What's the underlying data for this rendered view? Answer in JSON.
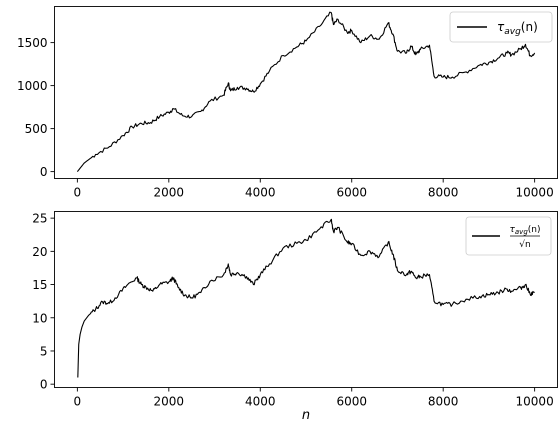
{
  "chart_data": [
    {
      "type": "line",
      "xlim": [
        -500,
        10500
      ],
      "ylim": [
        -80,
        1920
      ],
      "xticks": [
        0,
        2000,
        4000,
        6000,
        8000,
        10000
      ],
      "yticks": [
        0,
        500,
        1000,
        1500
      ],
      "legend_placement": "upper right",
      "series": [
        {
          "name": "τavg(n)",
          "name_main": "τ",
          "name_sub": "avg",
          "name_arg": "(n)",
          "color": "#000000",
          "points": [
            [
              0,
              0
            ],
            [
              150,
              100
            ],
            [
              400,
              200
            ],
            [
              700,
              290
            ],
            [
              1000,
              420
            ],
            [
              1200,
              520
            ],
            [
              1400,
              560
            ],
            [
              1600,
              570
            ],
            [
              1800,
              640
            ],
            [
              2000,
              690
            ],
            [
              2100,
              730
            ],
            [
              2300,
              650
            ],
            [
              2500,
              640
            ],
            [
              2700,
              700
            ],
            [
              2900,
              820
            ],
            [
              3200,
              890
            ],
            [
              3300,
              1030
            ],
            [
              3350,
              940
            ],
            [
              3500,
              980
            ],
            [
              3700,
              970
            ],
            [
              3850,
              930
            ],
            [
              4000,
              1020
            ],
            [
              4200,
              1170
            ],
            [
              4500,
              1350
            ],
            [
              4800,
              1450
            ],
            [
              5000,
              1520
            ],
            [
              5300,
              1690
            ],
            [
              5550,
              1850
            ],
            [
              5600,
              1710
            ],
            [
              5700,
              1770
            ],
            [
              5900,
              1620
            ],
            [
              6000,
              1640
            ],
            [
              6200,
              1500
            ],
            [
              6400,
              1580
            ],
            [
              6600,
              1540
            ],
            [
              6800,
              1730
            ],
            [
              6900,
              1600
            ],
            [
              7000,
              1400
            ],
            [
              7200,
              1380
            ],
            [
              7300,
              1460
            ],
            [
              7400,
              1360
            ],
            [
              7500,
              1420
            ],
            [
              7700,
              1470
            ],
            [
              7800,
              1110
            ],
            [
              8000,
              1100
            ],
            [
              8200,
              1100
            ],
            [
              8500,
              1160
            ],
            [
              8800,
              1240
            ],
            [
              9000,
              1270
            ],
            [
              9200,
              1320
            ],
            [
              9400,
              1380
            ],
            [
              9500,
              1360
            ],
            [
              9700,
              1430
            ],
            [
              9800,
              1480
            ],
            [
              9900,
              1350
            ],
            [
              10000,
              1380
            ]
          ]
        }
      ]
    },
    {
      "type": "line",
      "xlim": [
        -500,
        10500
      ],
      "ylim": [
        -0.5,
        26
      ],
      "xticks": [
        0,
        2000,
        4000,
        6000,
        8000,
        10000
      ],
      "yticks": [
        0,
        5,
        10,
        15,
        20,
        25
      ],
      "xlabel": "n",
      "legend_placement": "upper right",
      "series": [
        {
          "name": "τavg(n)/√n",
          "numerator_main": "τ",
          "numerator_sub": "avg",
          "numerator_arg": "(n)",
          "denominator": "√n",
          "color": "#000000",
          "points": [
            [
              10,
              1.0
            ],
            [
              30,
              6.0
            ],
            [
              60,
              7.5
            ],
            [
              100,
              8.6
            ],
            [
              150,
              9.5
            ],
            [
              250,
              10.4
            ],
            [
              400,
              11.3
            ],
            [
              550,
              12.4
            ],
            [
              700,
              12.2
            ],
            [
              900,
              13.5
            ],
            [
              1100,
              15.0
            ],
            [
              1300,
              16.0
            ],
            [
              1400,
              15.0
            ],
            [
              1500,
              14.6
            ],
            [
              1650,
              14.0
            ],
            [
              1800,
              15.0
            ],
            [
              2000,
              15.4
            ],
            [
              2100,
              16.0
            ],
            [
              2200,
              14.6
            ],
            [
              2350,
              13.4
            ],
            [
              2500,
              13.0
            ],
            [
              2700,
              13.8
            ],
            [
              2900,
              15.5
            ],
            [
              3200,
              16.5
            ],
            [
              3300,
              18.1
            ],
            [
              3350,
              16.5
            ],
            [
              3500,
              16.8
            ],
            [
              3700,
              16.2
            ],
            [
              3850,
              15.0
            ],
            [
              4000,
              16.5
            ],
            [
              4200,
              18.1
            ],
            [
              4500,
              20.5
            ],
            [
              4800,
              21.2
            ],
            [
              5000,
              21.7
            ],
            [
              5300,
              23.4
            ],
            [
              5550,
              24.8
            ],
            [
              5600,
              23.0
            ],
            [
              5700,
              23.6
            ],
            [
              5900,
              21.4
            ],
            [
              6000,
              21.1
            ],
            [
              6200,
              19.4
            ],
            [
              6400,
              20.0
            ],
            [
              6600,
              19.2
            ],
            [
              6800,
              21.4
            ],
            [
              6900,
              19.6
            ],
            [
              7000,
              17.1
            ],
            [
              7200,
              16.5
            ],
            [
              7300,
              17.0
            ],
            [
              7400,
              16.0
            ],
            [
              7500,
              16.2
            ],
            [
              7700,
              16.5
            ],
            [
              7800,
              12.5
            ],
            [
              8000,
              12.0
            ],
            [
              8200,
              12.0
            ],
            [
              8500,
              12.8
            ],
            [
              8800,
              13.2
            ],
            [
              9000,
              13.5
            ],
            [
              9200,
              13.8
            ],
            [
              9400,
              14.3
            ],
            [
              9500,
              14.0
            ],
            [
              9700,
              14.5
            ],
            [
              9800,
              15.0
            ],
            [
              9900,
              13.6
            ],
            [
              10000,
              13.8
            ]
          ]
        }
      ]
    }
  ]
}
